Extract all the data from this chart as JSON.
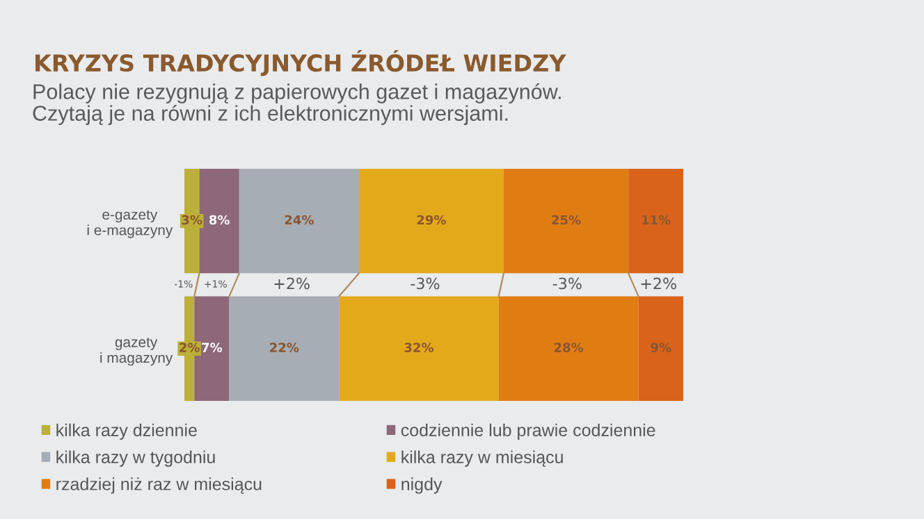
{
  "chart_data": {
    "type": "bar",
    "orientation": "horizontal",
    "stacked": true,
    "title": "KRYZYS TRADYCYJNYCH ŹRÓDEŁ WIEDZY",
    "subtitle": "Polacy nie rezygnują z papierowych gazet i magazynów.\nCzytają je na równi z ich elektronicznymi wersjami.",
    "categories": [
      "e-gazety\ni e-magazyny",
      "gazety\ni magazyny"
    ],
    "series": [
      {
        "name": "kilka razy dziennie",
        "color": "#bcb03a",
        "values": [
          3,
          2
        ],
        "value_labels": [
          "3%",
          "2%"
        ]
      },
      {
        "name": "codziennie lub prawie codziennie",
        "color": "#8c6878",
        "values": [
          8,
          7
        ],
        "value_labels": [
          "8%",
          "7%"
        ]
      },
      {
        "name": "kilka razy w tygodniu",
        "color": "#a6adb4",
        "values": [
          24,
          22
        ],
        "value_labels": [
          "24%",
          "22%"
        ]
      },
      {
        "name": "kilka razy w miesiącu",
        "color": "#e3a91a",
        "values": [
          29,
          32
        ],
        "value_labels": [
          "29%",
          "32%"
        ]
      },
      {
        "name": "rzadziej niż raz w miesiącu",
        "color": "#e07d12",
        "values": [
          25,
          28
        ],
        "value_labels": [
          "25%",
          "28%"
        ]
      },
      {
        "name": "nigdy",
        "color": "#d9631a",
        "values": [
          11,
          9
        ],
        "value_labels": [
          "11%",
          "9%"
        ]
      }
    ],
    "annotations": [
      "-1%",
      "+1%",
      "+2%",
      "-3%",
      "-3%",
      "+2%"
    ],
    "xlim": [
      0,
      100
    ],
    "legend": "bottom",
    "tick_labels": "y"
  }
}
